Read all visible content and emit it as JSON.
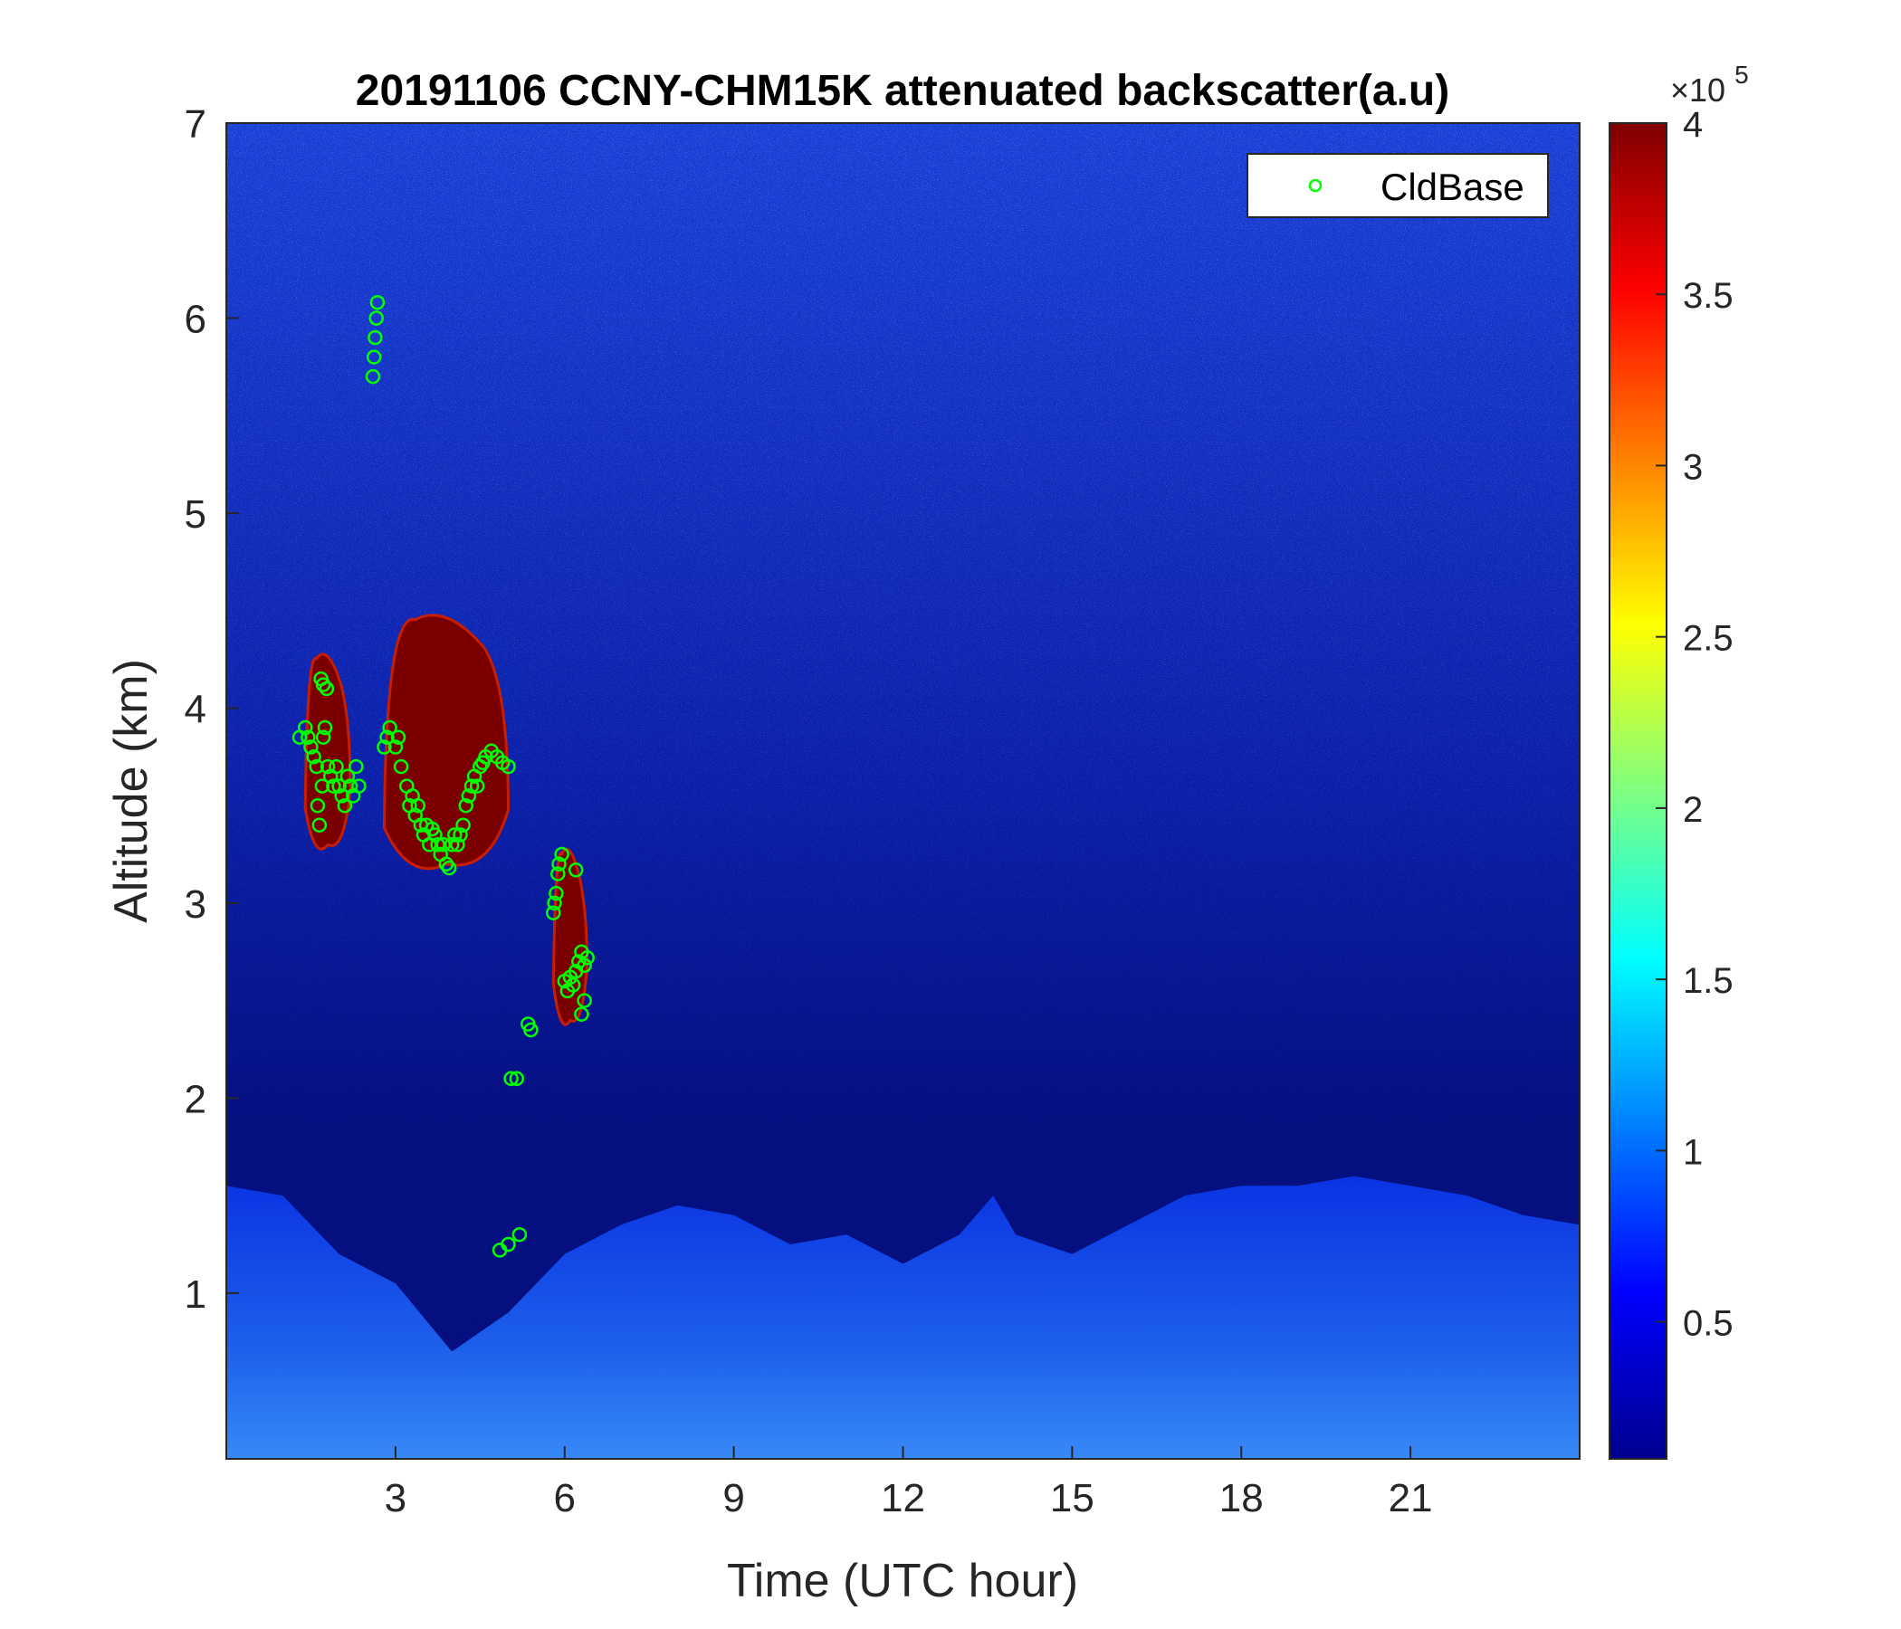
{
  "chart_data": {
    "type": "heatmap",
    "title": "20191106 CCNY-CHM15K attenuated backscatter(a.u)",
    "xlabel": "Time (UTC hour)",
    "ylabel": "Altitude (km)",
    "xlim": [
      0,
      24
    ],
    "ylim": [
      0.15,
      7
    ],
    "xticks": [
      3,
      6,
      9,
      12,
      15,
      18,
      21
    ],
    "yticks": [
      1,
      2,
      3,
      4,
      5,
      6,
      7
    ],
    "colorbar": {
      "colormap": "jet",
      "range": [
        0.1,
        4
      ],
      "ticks": [
        0.5,
        1,
        1.5,
        2,
        2.5,
        3,
        3.5,
        4
      ],
      "scale_label": "×10",
      "scale_exponent": "5"
    },
    "legend": {
      "position": "top-right",
      "entries": [
        "CldBase"
      ]
    },
    "colors": {
      "cldbase_marker": "#00ff00"
    },
    "features": {
      "boundary_layer": {
        "description_values": "approximate top of elevated-backscatter layer (km) vs hour",
        "hours": [
          0,
          1,
          2,
          3,
          4,
          5,
          6,
          7,
          8,
          9,
          10,
          11,
          12,
          13,
          13.6,
          14,
          15,
          16,
          17,
          18,
          19,
          20,
          21,
          22,
          23,
          24
        ],
        "top_km": [
          1.55,
          1.5,
          1.2,
          1.05,
          0.7,
          0.9,
          1.2,
          1.35,
          1.45,
          1.4,
          1.25,
          1.3,
          1.15,
          1.3,
          1.5,
          1.3,
          1.2,
          1.35,
          1.5,
          1.55,
          1.55,
          1.6,
          1.55,
          1.5,
          1.4,
          1.35
        ]
      },
      "cloud_layers": [
        {
          "start_hour": 1.4,
          "end_hour": 2.2,
          "base_km": 3.3,
          "top_km": 4.3
        },
        {
          "start_hour": 2.8,
          "end_hour": 5.0,
          "base_km": 3.2,
          "top_km": 4.5
        },
        {
          "start_hour": 5.8,
          "end_hour": 6.4,
          "base_km": 2.4,
          "top_km": 3.3
        }
      ]
    },
    "series": [
      {
        "name": "CldBase",
        "x": [
          1.3,
          1.4,
          1.45,
          1.5,
          1.55,
          1.6,
          1.62,
          1.65,
          1.7,
          1.72,
          1.75,
          1.8,
          1.85,
          1.9,
          1.95,
          2.0,
          2.05,
          2.1,
          2.15,
          2.2,
          2.25,
          1.68,
          1.72,
          1.78,
          2.3,
          2.35,
          2.6,
          2.62,
          2.64,
          2.66,
          2.68,
          2.8,
          2.85,
          2.9,
          3.0,
          3.05,
          3.1,
          3.2,
          3.25,
          3.3,
          3.35,
          3.4,
          3.45,
          3.5,
          3.55,
          3.6,
          3.65,
          3.7,
          3.75,
          3.8,
          3.85,
          3.9,
          3.95,
          4.0,
          4.05,
          4.1,
          4.15,
          4.2,
          4.25,
          4.3,
          4.35,
          4.4,
          4.45,
          4.5,
          4.55,
          4.6,
          4.7,
          4.8,
          4.9,
          5.0,
          4.85,
          5.0,
          5.05,
          5.15,
          5.2,
          5.35,
          5.4,
          5.8,
          5.82,
          5.85,
          5.88,
          5.9,
          5.95,
          6.0,
          6.05,
          6.1,
          6.15,
          6.2,
          6.25,
          6.3,
          6.35,
          6.4,
          6.2,
          6.3,
          6.35
        ],
        "y": [
          3.85,
          3.9,
          3.85,
          3.8,
          3.75,
          3.7,
          3.5,
          3.4,
          3.6,
          3.85,
          3.9,
          3.7,
          3.65,
          3.6,
          3.7,
          3.6,
          3.55,
          3.5,
          3.65,
          3.6,
          3.55,
          4.15,
          4.12,
          4.1,
          3.7,
          3.6,
          5.7,
          5.8,
          5.9,
          6.0,
          6.08,
          3.8,
          3.85,
          3.9,
          3.8,
          3.85,
          3.7,
          3.6,
          3.5,
          3.55,
          3.45,
          3.5,
          3.4,
          3.35,
          3.4,
          3.3,
          3.38,
          3.35,
          3.3,
          3.25,
          3.3,
          3.2,
          3.18,
          3.3,
          3.35,
          3.3,
          3.35,
          3.4,
          3.5,
          3.55,
          3.6,
          3.65,
          3.6,
          3.7,
          3.72,
          3.75,
          3.78,
          3.75,
          3.72,
          3.7,
          1.22,
          1.25,
          2.1,
          2.1,
          1.3,
          2.38,
          2.35,
          2.95,
          3.0,
          3.05,
          3.15,
          3.2,
          3.25,
          2.6,
          2.55,
          2.62,
          2.58,
          2.65,
          2.7,
          2.75,
          2.68,
          2.72,
          3.17,
          2.43,
          2.5
        ]
      }
    ]
  }
}
